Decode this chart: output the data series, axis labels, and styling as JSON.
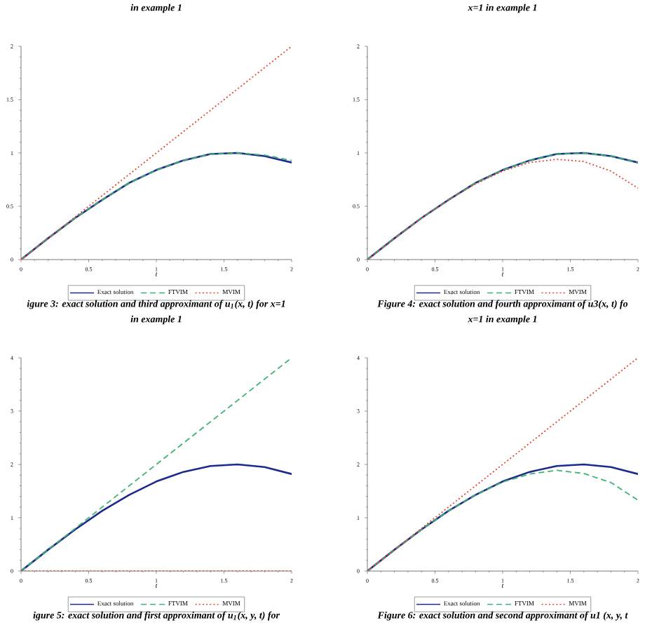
{
  "chart_data": [
    {
      "type": "line",
      "title": "in example 1",
      "xlabel": "t",
      "xlim": [
        0,
        2
      ],
      "ylim": [
        0,
        2
      ],
      "xticks": [
        0,
        0.5,
        1,
        1.5,
        2
      ],
      "yticks": [
        0,
        0.5,
        1,
        1.5,
        2
      ],
      "legend": "bottom",
      "marker": "none",
      "grid": false,
      "series": [
        {
          "name": "Exact solution",
          "color": "#1c2a8c",
          "line_style": "solid",
          "x": [
            0,
            0.2,
            0.4,
            0.6,
            0.8,
            1,
            1.2,
            1.4,
            1.6,
            1.8,
            2
          ],
          "values": [
            0,
            0.2,
            0.39,
            0.56,
            0.72,
            0.84,
            0.93,
            0.99,
            1.0,
            0.97,
            0.91
          ]
        },
        {
          "name": "FTVIM",
          "color": "#3cb371",
          "line_style": "dashed",
          "x": [
            0,
            0.2,
            0.4,
            0.6,
            0.8,
            1,
            1.2,
            1.4,
            1.6,
            1.8,
            2
          ],
          "values": [
            0,
            0.2,
            0.39,
            0.56,
            0.72,
            0.84,
            0.93,
            0.99,
            1.0,
            0.98,
            0.93
          ]
        },
        {
          "name": "MVIM",
          "color": "#e8402a",
          "line_style": "dotted",
          "x": [
            0,
            2
          ],
          "values": [
            0,
            2
          ]
        }
      ],
      "annotations": [
        "igure 3: exact solution and third approximant of u$_{1}$(x, t) for x=1",
        "in example 1"
      ]
    },
    {
      "type": "line",
      "title": "x=1 in example 1",
      "xlabel": "t",
      "xlim": [
        0,
        2
      ],
      "ylim": [
        0,
        2
      ],
      "xticks": [
        0,
        0.5,
        1,
        1.5,
        2
      ],
      "yticks": [
        0,
        0.5,
        1,
        1.5,
        2
      ],
      "legend": "bottom",
      "marker": "none",
      "grid": false,
      "series": [
        {
          "name": "Exact solution",
          "color": "#1c2a8c",
          "line_style": "solid",
          "x": [
            0,
            0.2,
            0.4,
            0.6,
            0.8,
            1,
            1.2,
            1.4,
            1.6,
            1.8,
            2
          ],
          "values": [
            0,
            0.2,
            0.39,
            0.56,
            0.72,
            0.84,
            0.93,
            0.99,
            1.0,
            0.97,
            0.91
          ]
        },
        {
          "name": "FTVIM",
          "color": "#3cb371",
          "line_style": "dashed",
          "x": [
            0,
            0.2,
            0.4,
            0.6,
            0.8,
            1,
            1.2,
            1.4,
            1.6,
            1.8,
            2
          ],
          "values": [
            0,
            0.2,
            0.39,
            0.56,
            0.72,
            0.84,
            0.93,
            0.99,
            1.0,
            0.97,
            0.91
          ]
        },
        {
          "name": "MVIM",
          "color": "#e8402a",
          "line_style": "dotted",
          "x": [
            0,
            0.2,
            0.4,
            0.6,
            0.8,
            1,
            1.2,
            1.4,
            1.6,
            1.8,
            2
          ],
          "values": [
            0,
            0.2,
            0.39,
            0.56,
            0.71,
            0.83,
            0.91,
            0.94,
            0.92,
            0.83,
            0.67
          ]
        }
      ],
      "annotations": [
        "Figure 4: exact solution and fourth approximant of u3(x, t) fo",
        "x=1 in example 1"
      ]
    },
    {
      "type": "line",
      "xlabel": "t",
      "xlim": [
        0,
        2
      ],
      "ylim": [
        0,
        4
      ],
      "xticks": [
        0,
        0.5,
        1,
        1.5,
        2
      ],
      "yticks": [
        0,
        1,
        2,
        3,
        4
      ],
      "legend": "bottom",
      "marker": "none",
      "grid": false,
      "series": [
        {
          "name": "Exact solution",
          "color": "#1c2a8c",
          "line_style": "solid",
          "x": [
            0,
            0.2,
            0.4,
            0.6,
            0.8,
            1,
            1.2,
            1.4,
            1.6,
            1.8,
            2
          ],
          "values": [
            0,
            0.4,
            0.78,
            1.13,
            1.43,
            1.68,
            1.86,
            1.97,
            2.0,
            1.95,
            1.82
          ]
        },
        {
          "name": "FTVIM",
          "color": "#3cb371",
          "line_style": "dashed",
          "x": [
            0,
            2
          ],
          "values": [
            0,
            4
          ]
        },
        {
          "name": "MVIM",
          "color": "#e8402a",
          "line_style": "dotted",
          "x": [
            0,
            2
          ],
          "values": [
            0,
            0
          ]
        }
      ],
      "annotations": [
        "igure 5: exact solution and first approximant of u$_{1}$(x, y, t) for"
      ]
    },
    {
      "type": "line",
      "xlabel": "t",
      "xlim": [
        0,
        2
      ],
      "ylim": [
        0,
        4
      ],
      "xticks": [
        0,
        0.5,
        1,
        1.5,
        2
      ],
      "yticks": [
        0,
        1,
        2,
        3,
        4
      ],
      "legend": "bottom",
      "marker": "none",
      "grid": false,
      "series": [
        {
          "name": "Exact solution",
          "color": "#1c2a8c",
          "line_style": "solid",
          "x": [
            0,
            0.2,
            0.4,
            0.6,
            0.8,
            1,
            1.2,
            1.4,
            1.6,
            1.8,
            2
          ],
          "values": [
            0,
            0.4,
            0.78,
            1.13,
            1.43,
            1.68,
            1.86,
            1.97,
            2.0,
            1.95,
            1.82
          ]
        },
        {
          "name": "FTVIM",
          "color": "#3cb371",
          "line_style": "dashed",
          "x": [
            0,
            0.2,
            0.4,
            0.6,
            0.8,
            1,
            1.2,
            1.4,
            1.6,
            1.8,
            2
          ],
          "values": [
            0,
            0.4,
            0.78,
            1.13,
            1.43,
            1.67,
            1.82,
            1.89,
            1.83,
            1.66,
            1.33
          ]
        },
        {
          "name": "MVIM",
          "color": "#e8402a",
          "line_style": "dotted",
          "x": [
            0,
            2
          ],
          "values": [
            0,
            4
          ]
        }
      ],
      "annotations": [
        "Figure 6: exact solution and second approximant of u1 (x, y, t"
      ]
    }
  ]
}
